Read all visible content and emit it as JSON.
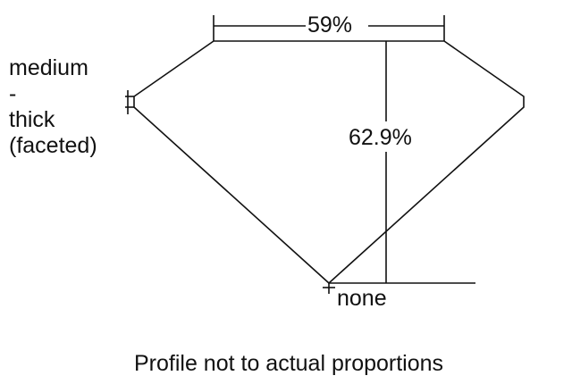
{
  "table_label": "59%",
  "depth_label": "62.9%",
  "girdle_label_lines": [
    "medium",
    "-",
    "thick",
    "(faceted)"
  ],
  "culet_label": "none",
  "caption": "Profile not to actual proportions"
}
